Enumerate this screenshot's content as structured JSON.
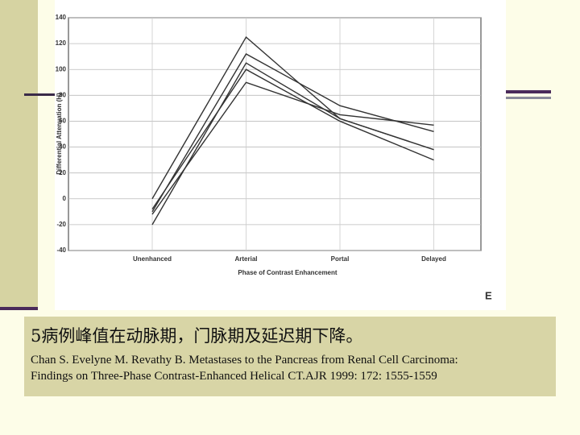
{
  "chart_data": {
    "type": "line",
    "y_label": "Differential Attenuation (H)",
    "x_label": "Phase of Contrast Enhancement",
    "panel_label": "E",
    "categories": [
      "Unenhanced",
      "Arterial",
      "Portal",
      "Delayed"
    ],
    "series": [
      {
        "color": "#333333",
        "values": [
          0,
          125,
          62,
          38
        ]
      },
      {
        "color": "#333333",
        "values": [
          -10,
          112,
          72,
          52
        ]
      },
      {
        "color": "#333333",
        "values": [
          -20,
          105,
          62,
          38
        ]
      },
      {
        "color": "#333333",
        "values": [
          -8,
          100,
          60,
          30
        ]
      },
      {
        "color": "#333333",
        "values": [
          -12,
          90,
          65,
          57
        ]
      }
    ],
    "ylim": [
      -40,
      140
    ],
    "yticks": [
      -40,
      -20,
      0,
      20,
      40,
      60,
      80,
      100,
      120,
      140
    ],
    "grid": true
  },
  "caption": "5病例峰值在动脉期，门脉期及延迟期下降。",
  "citation": [
    "Chan S. Evelyne M. Revathy B. Metastases to the Pancreas from Renal Cell Carcinoma:",
    "Findings on Three-Phase Contrast-Enhanced Helical CT.AJR 1999: 172: 1555-1559"
  ]
}
